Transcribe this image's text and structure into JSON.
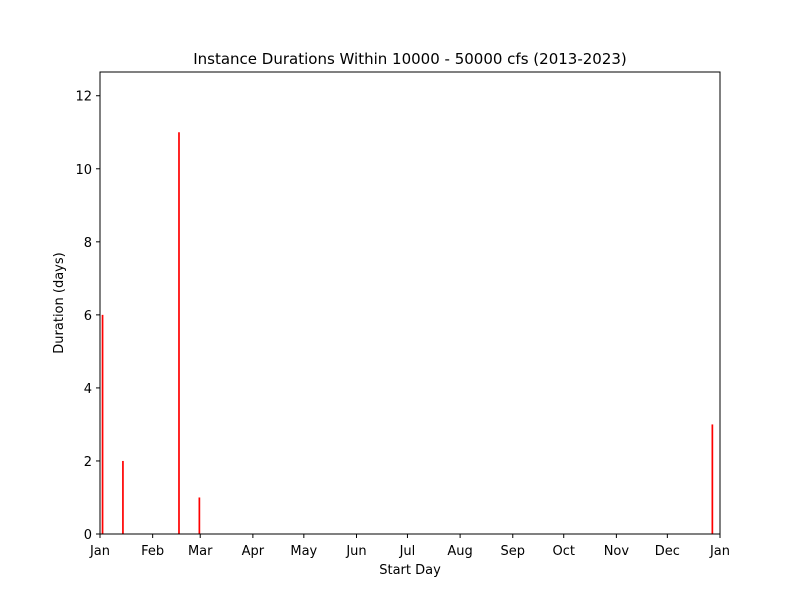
{
  "chart_data": {
    "type": "bar",
    "title": "Instance Durations Within 10000 - 50000 cfs (2013-2023)",
    "xlabel": "Start Day",
    "ylabel": "Duration (days)",
    "x_axis": {
      "type": "date",
      "range": [
        "Jan 1",
        "Jan 1 (next year)"
      ],
      "tick_labels": [
        "Jan",
        "Feb",
        "Mar",
        "Apr",
        "May",
        "Jun",
        "Jul",
        "Aug",
        "Sep",
        "Oct",
        "Nov",
        "Dec",
        "Jan"
      ]
    },
    "y_axis": {
      "range": [
        0,
        12.65
      ],
      "ticks": [
        0,
        2,
        4,
        6,
        8,
        10,
        12
      ]
    },
    "grid": false,
    "bar_color": "#ff0000",
    "bars": [
      {
        "start_day": "Jan 2",
        "duration": 6
      },
      {
        "start_day": "Jan 14",
        "duration": 2
      },
      {
        "start_day": "Feb 16",
        "duration": 11
      },
      {
        "start_day": "Feb 28",
        "duration": 1
      },
      {
        "start_day": "Dec 27",
        "duration": 3
      }
    ]
  }
}
